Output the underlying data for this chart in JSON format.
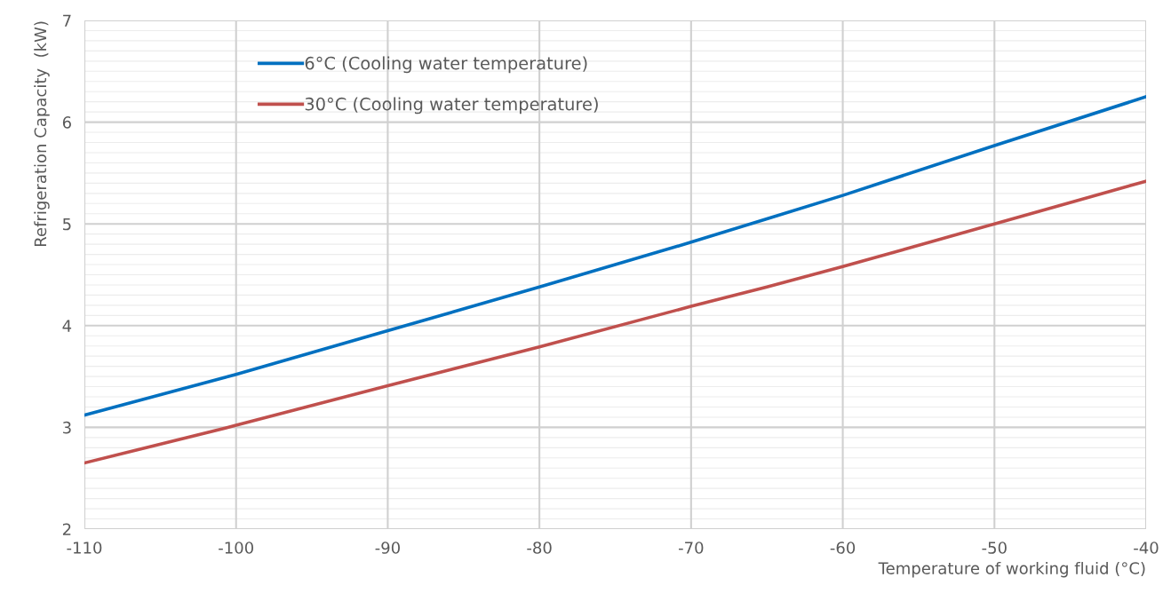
{
  "chart_data": {
    "type": "line",
    "xlabel": "Temperature of working fluid (°C)",
    "ylabel": "Refrigeration Capacity  (kW)",
    "x": [
      -110,
      -100,
      -90,
      -80,
      -70,
      -65,
      -60,
      -50,
      -40
    ],
    "series": [
      {
        "name": "6°C (Cooling water temperature)",
        "color": "#0070c0",
        "values": [
          3.12,
          3.52,
          3.95,
          4.38,
          4.82,
          5.05,
          5.28,
          5.77,
          6.25
        ]
      },
      {
        "name": "30°C (Cooling water temperature)",
        "color": "#c0504d",
        "values": [
          2.65,
          3.02,
          3.41,
          3.79,
          4.19,
          4.38,
          4.58,
          5.0,
          5.42
        ]
      }
    ],
    "xlim": [
      -110,
      -40
    ],
    "xticks": [
      -110,
      -100,
      -90,
      -80,
      -70,
      -60,
      -50,
      -40
    ],
    "ylim": [
      2,
      7
    ],
    "yticks": [
      2,
      3,
      4,
      5,
      6,
      7
    ],
    "grid": true,
    "legend": "top left",
    "marker": "none",
    "line_style": "solid"
  }
}
